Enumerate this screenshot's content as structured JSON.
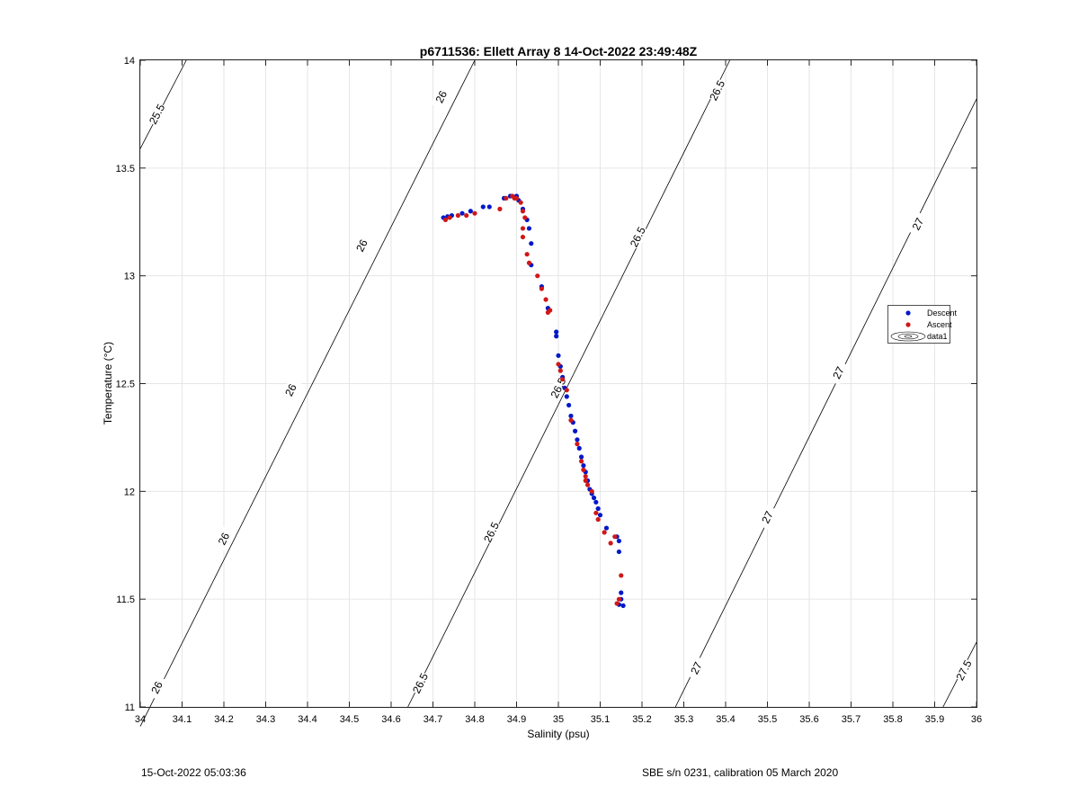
{
  "footer": {
    "timestamp": "15-Oct-2022 05:03:36",
    "instrument": "SBE s/n 0231, calibration 05 March 2020"
  },
  "chart_data": {
    "type": "scatter",
    "title": "p6711536: Ellett Array 8 14-Oct-2022 23:49:48Z",
    "xlabel": "Salinity (psu)",
    "ylabel": "Temperature (°C)",
    "xlim": [
      34,
      36
    ],
    "ylim": [
      11,
      14
    ],
    "x_ticks": [
      "34",
      "34.1",
      "34.2",
      "34.3",
      "34.4",
      "34.5",
      "34.6",
      "34.7",
      "34.8",
      "34.9",
      "35",
      "35.1",
      "35.2",
      "35.3",
      "35.4",
      "35.5",
      "35.6",
      "35.7",
      "35.8",
      "35.9",
      "36"
    ],
    "y_ticks": [
      "11",
      "11.5",
      "12",
      "12.5",
      "13",
      "13.5",
      "14"
    ],
    "grid": true,
    "legend_position": "right",
    "legend": [
      "Descent",
      "Ascent",
      "data1"
    ],
    "colors": {
      "Descent": "#0018c8",
      "Ascent": "#d01818",
      "contour": "#000000",
      "grid": "#e6e6e6"
    },
    "series": [
      {
        "name": "Descent",
        "points": [
          [
            34.725,
            13.27
          ],
          [
            34.735,
            13.275
          ],
          [
            34.745,
            13.28
          ],
          [
            34.77,
            13.29
          ],
          [
            34.79,
            13.3
          ],
          [
            34.82,
            13.32
          ],
          [
            34.835,
            13.32
          ],
          [
            34.87,
            13.36
          ],
          [
            34.885,
            13.37
          ],
          [
            34.9,
            13.37
          ],
          [
            34.905,
            13.35
          ],
          [
            34.915,
            13.31
          ],
          [
            34.925,
            13.26
          ],
          [
            34.93,
            13.22
          ],
          [
            34.935,
            13.15
          ],
          [
            34.935,
            13.05
          ],
          [
            34.96,
            12.95
          ],
          [
            34.975,
            12.85
          ],
          [
            34.995,
            12.74
          ],
          [
            34.995,
            12.72
          ],
          [
            35.0,
            12.63
          ],
          [
            35.005,
            12.58
          ],
          [
            35.01,
            12.53
          ],
          [
            35.015,
            12.48
          ],
          [
            35.02,
            12.44
          ],
          [
            35.025,
            12.4
          ],
          [
            35.03,
            12.35
          ],
          [
            35.035,
            12.32
          ],
          [
            35.04,
            12.28
          ],
          [
            35.045,
            12.24
          ],
          [
            35.05,
            12.2
          ],
          [
            35.055,
            12.16
          ],
          [
            35.06,
            12.12
          ],
          [
            35.065,
            12.09
          ],
          [
            35.07,
            12.05
          ],
          [
            35.075,
            12.01
          ],
          [
            35.08,
            11.99
          ],
          [
            35.085,
            11.97
          ],
          [
            35.09,
            11.95
          ],
          [
            35.095,
            11.92
          ],
          [
            35.1,
            11.89
          ],
          [
            35.115,
            11.83
          ],
          [
            35.14,
            11.79
          ],
          [
            35.145,
            11.77
          ],
          [
            35.145,
            11.72
          ],
          [
            35.15,
            11.53
          ],
          [
            35.15,
            11.5
          ],
          [
            35.155,
            11.47
          ],
          [
            35.145,
            11.475
          ]
        ]
      },
      {
        "name": "Ascent",
        "points": [
          [
            34.73,
            13.26
          ],
          [
            34.74,
            13.27
          ],
          [
            34.76,
            13.28
          ],
          [
            34.78,
            13.28
          ],
          [
            34.8,
            13.29
          ],
          [
            34.86,
            13.31
          ],
          [
            34.875,
            13.36
          ],
          [
            34.89,
            13.37
          ],
          [
            34.895,
            13.36
          ],
          [
            34.9,
            13.36
          ],
          [
            34.91,
            13.34
          ],
          [
            34.915,
            13.3
          ],
          [
            34.92,
            13.27
          ],
          [
            34.915,
            13.22
          ],
          [
            34.915,
            13.18
          ],
          [
            34.925,
            13.1
          ],
          [
            34.93,
            13.06
          ],
          [
            34.95,
            13.0
          ],
          [
            34.96,
            12.94
          ],
          [
            34.97,
            12.89
          ],
          [
            34.975,
            12.83
          ],
          [
            34.98,
            12.84
          ],
          [
            35.0,
            12.59
          ],
          [
            35.005,
            12.56
          ],
          [
            35.01,
            12.52
          ],
          [
            35.02,
            12.47
          ],
          [
            35.03,
            12.33
          ],
          [
            35.045,
            12.22
          ],
          [
            35.055,
            12.14
          ],
          [
            35.06,
            12.1
          ],
          [
            35.065,
            12.07
          ],
          [
            35.065,
            12.05
          ],
          [
            35.07,
            12.03
          ],
          [
            35.08,
            12.0
          ],
          [
            35.09,
            11.9
          ],
          [
            35.095,
            11.87
          ],
          [
            35.11,
            11.81
          ],
          [
            35.125,
            11.76
          ],
          [
            35.135,
            11.79
          ],
          [
            35.15,
            11.61
          ],
          [
            35.145,
            11.5
          ],
          [
            35.14,
            11.48
          ]
        ]
      }
    ],
    "contours": [
      {
        "level": "25.5",
        "points": [
          [
            34.0,
            13.59
          ],
          [
            34.11,
            14.0
          ]
        ],
        "labels": [
          [
            34.04,
            13.75
          ]
        ]
      },
      {
        "level": "26",
        "points": [
          [
            34.0,
            10.91
          ],
          [
            34.8,
            14.0
          ]
        ],
        "labels": [
          [
            34.04,
            11.09
          ],
          [
            34.2,
            11.78
          ],
          [
            34.36,
            12.47
          ],
          [
            34.53,
            13.14
          ],
          [
            34.72,
            13.83
          ]
        ]
      },
      {
        "level": "26.5",
        "points": [
          [
            34.64,
            11.0
          ],
          [
            35.41,
            14.0
          ]
        ],
        "labels": [
          [
            34.67,
            11.11
          ],
          [
            34.84,
            11.81
          ],
          [
            35.0,
            12.48
          ],
          [
            35.19,
            13.18
          ],
          [
            35.38,
            13.86
          ]
        ]
      },
      {
        "level": "27",
        "points": [
          [
            35.28,
            11.0
          ],
          [
            36.0,
            13.82
          ]
        ],
        "labels": [
          [
            35.33,
            11.18
          ],
          [
            35.5,
            11.88
          ],
          [
            35.67,
            12.55
          ],
          [
            35.86,
            13.24
          ]
        ]
      },
      {
        "level": "27.5",
        "points": [
          [
            35.92,
            11.0
          ],
          [
            36.0,
            11.3
          ]
        ],
        "labels": [
          [
            35.97,
            11.17
          ]
        ]
      }
    ]
  }
}
